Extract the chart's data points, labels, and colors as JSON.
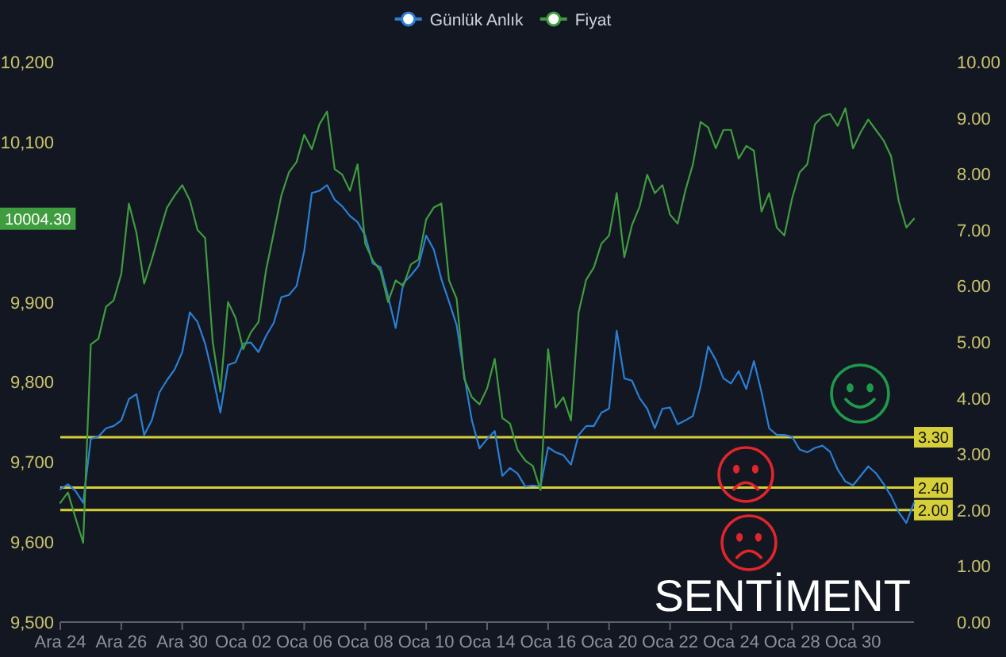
{
  "chart_data": {
    "type": "line",
    "categories": [
      "Ara 24",
      null,
      null,
      null,
      null,
      null,
      null,
      null,
      "Ara 26",
      null,
      null,
      null,
      null,
      null,
      null,
      null,
      "Ara 30",
      null,
      null,
      null,
      null,
      null,
      null,
      null,
      "Oca 02",
      null,
      null,
      null,
      null,
      null,
      null,
      null,
      "Oca 06",
      null,
      null,
      null,
      null,
      null,
      null,
      null,
      "Oca 08",
      null,
      null,
      null,
      null,
      null,
      null,
      null,
      "Oca 10",
      null,
      null,
      null,
      null,
      null,
      null,
      null,
      "Oca 14",
      null,
      null,
      null,
      null,
      null,
      null,
      null,
      "Oca 16",
      null,
      null,
      null,
      null,
      null,
      null,
      null,
      "Oca 20",
      null,
      null,
      null,
      null,
      null,
      null,
      null,
      "Oca 22",
      null,
      null,
      null,
      null,
      null,
      null,
      null,
      "Oca 24",
      null,
      null,
      null,
      null,
      null,
      null,
      null,
      "Oca 28",
      null,
      null,
      null,
      null,
      null,
      null,
      null,
      "Oca 30",
      null,
      null,
      null,
      null,
      null,
      null,
      null,
      null
    ],
    "series": [
      {
        "name": "Günlük Anlık",
        "color": "#2a7fd4",
        "axis": "y2",
        "values": [
          2.37,
          2.46,
          2.34,
          2.13,
          3.27,
          3.31,
          3.46,
          3.5,
          3.6,
          3.98,
          4.07,
          3.34,
          3.6,
          4.1,
          4.32,
          4.51,
          4.82,
          5.53,
          5.36,
          4.97,
          4.4,
          3.74,
          4.59,
          4.64,
          4.97,
          4.99,
          4.82,
          5.11,
          5.34,
          5.8,
          5.84,
          6.0,
          6.62,
          7.66,
          7.7,
          7.8,
          7.54,
          7.42,
          7.25,
          7.14,
          6.9,
          6.4,
          6.34,
          5.82,
          5.25,
          6.05,
          6.19,
          6.36,
          6.9,
          6.65,
          6.12,
          5.72,
          5.3,
          4.4,
          3.6,
          3.1,
          3.27,
          3.41,
          2.61,
          2.75,
          2.65,
          2.42,
          2.44,
          2.42,
          3.12,
          3.03,
          2.98,
          2.81,
          3.34,
          3.5,
          3.5,
          3.74,
          3.81,
          5.2,
          4.35,
          4.31,
          4.0,
          3.81,
          3.46,
          3.81,
          3.83,
          3.53,
          3.6,
          3.68,
          4.21,
          4.92,
          4.68,
          4.35,
          4.26,
          4.48,
          4.16,
          4.66,
          4.1,
          3.46,
          3.34,
          3.34,
          3.31,
          3.08,
          3.03,
          3.11,
          3.15,
          3.04,
          2.72,
          2.51,
          2.44,
          2.61,
          2.78,
          2.66,
          2.47,
          2.25,
          1.96,
          1.77,
          2.13
        ]
      },
      {
        "name": "Fiyat",
        "color": "#3f9c3f",
        "values": [
          9649,
          9662,
          9630,
          9599,
          9847,
          9854,
          9894,
          9902,
          9935,
          10023,
          9986,
          9923,
          9953,
          9986,
          10018,
          10033,
          10046,
          10027,
          9990,
          9980,
          9850,
          9788,
          9900,
          9880,
          9841,
          9862,
          9875,
          9940,
          9986,
          10033,
          10062,
          10075,
          10109,
          10091,
          10122,
          10138,
          10066,
          10059,
          10039,
          10072,
          9973,
          9952,
          9939,
          9900,
          9927,
          9920,
          9947,
          9953,
          10003,
          10018,
          10023,
          9927,
          9904,
          9804,
          9781,
          9772,
          9792,
          9829,
          9755,
          9748,
          9715,
          9702,
          9695,
          9665,
          9841,
          9768,
          9781,
          9752,
          9887,
          9928,
          9943,
          9973,
          9983,
          10036,
          9956,
          9996,
          10019,
          10059,
          10036,
          10046,
          10009,
          9998,
          10039,
          10072,
          10125,
          10118,
          10092,
          10115,
          10115,
          10079,
          10095,
          10089,
          10013,
          10036,
          9993,
          9983,
          10029,
          10062,
          10072,
          10122,
          10132,
          10135,
          10120,
          10142,
          10092,
          10112,
          10128,
          10115,
          10102,
          10082,
          10026,
          9993,
          10004
        ]
      }
    ],
    "ylim": [
      9500,
      10200
    ],
    "yticks": [
      {
        "value": 9500,
        "label": "9,500"
      },
      {
        "value": 9600,
        "label": "9,600"
      },
      {
        "value": 9700,
        "label": "9,700"
      },
      {
        "value": 9800,
        "label": "9,800"
      },
      {
        "value": 9900,
        "label": "9,900"
      },
      {
        "value": 10100,
        "label": "10,100"
      },
      {
        "value": 10200,
        "label": "10,200"
      }
    ],
    "y2lim": [
      0,
      10
    ],
    "y2ticks": [
      {
        "value": 0,
        "label": "0.00"
      },
      {
        "value": 1,
        "label": "1.00"
      },
      {
        "value": 2,
        "label": "2.00"
      },
      {
        "value": 3,
        "label": "3.00"
      },
      {
        "value": 4,
        "label": "4.00"
      },
      {
        "value": 5,
        "label": "5.00"
      },
      {
        "value": 6,
        "label": "6.00"
      },
      {
        "value": 7,
        "label": "7.00"
      },
      {
        "value": 8,
        "label": "8.00"
      },
      {
        "value": 9,
        "label": "9.00"
      },
      {
        "value": 10,
        "label": "10.00"
      }
    ],
    "ref_lines": [
      {
        "axis": "y2",
        "value": 3.3,
        "label": "3.30",
        "color": "#d6cf3a"
      },
      {
        "axis": "y2",
        "value": 2.4,
        "label": "2.40",
        "color": "#d6cf3a"
      },
      {
        "axis": "y2",
        "value": 2.0,
        "label": "2.00",
        "color": "#d6cf3a"
      }
    ],
    "annotations": [
      "10004.30",
      "SENTİMENT"
    ],
    "legend": "top",
    "grid": false
  }
}
